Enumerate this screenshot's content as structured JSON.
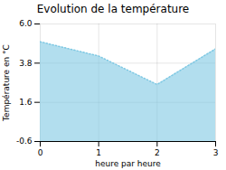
{
  "chart_data": {
    "type": "area",
    "title": "Evolution de la température",
    "xlabel": "heure par heure",
    "ylabel": "Température en °C",
    "x": [
      0,
      1,
      2,
      3
    ],
    "values": [
      5.0,
      4.2,
      2.6,
      4.6
    ],
    "color": "#7ec8e3",
    "line_style": "dotted",
    "xlim": [
      0,
      3
    ],
    "ylim": [
      -0.6,
      6.0
    ],
    "xticks": [
      0,
      1,
      2,
      3
    ],
    "yticks": [
      -0.6,
      1.6,
      3.8,
      {
        "value": 6.0,
        "label": "6.0"
      }
    ],
    "grid": true
  }
}
